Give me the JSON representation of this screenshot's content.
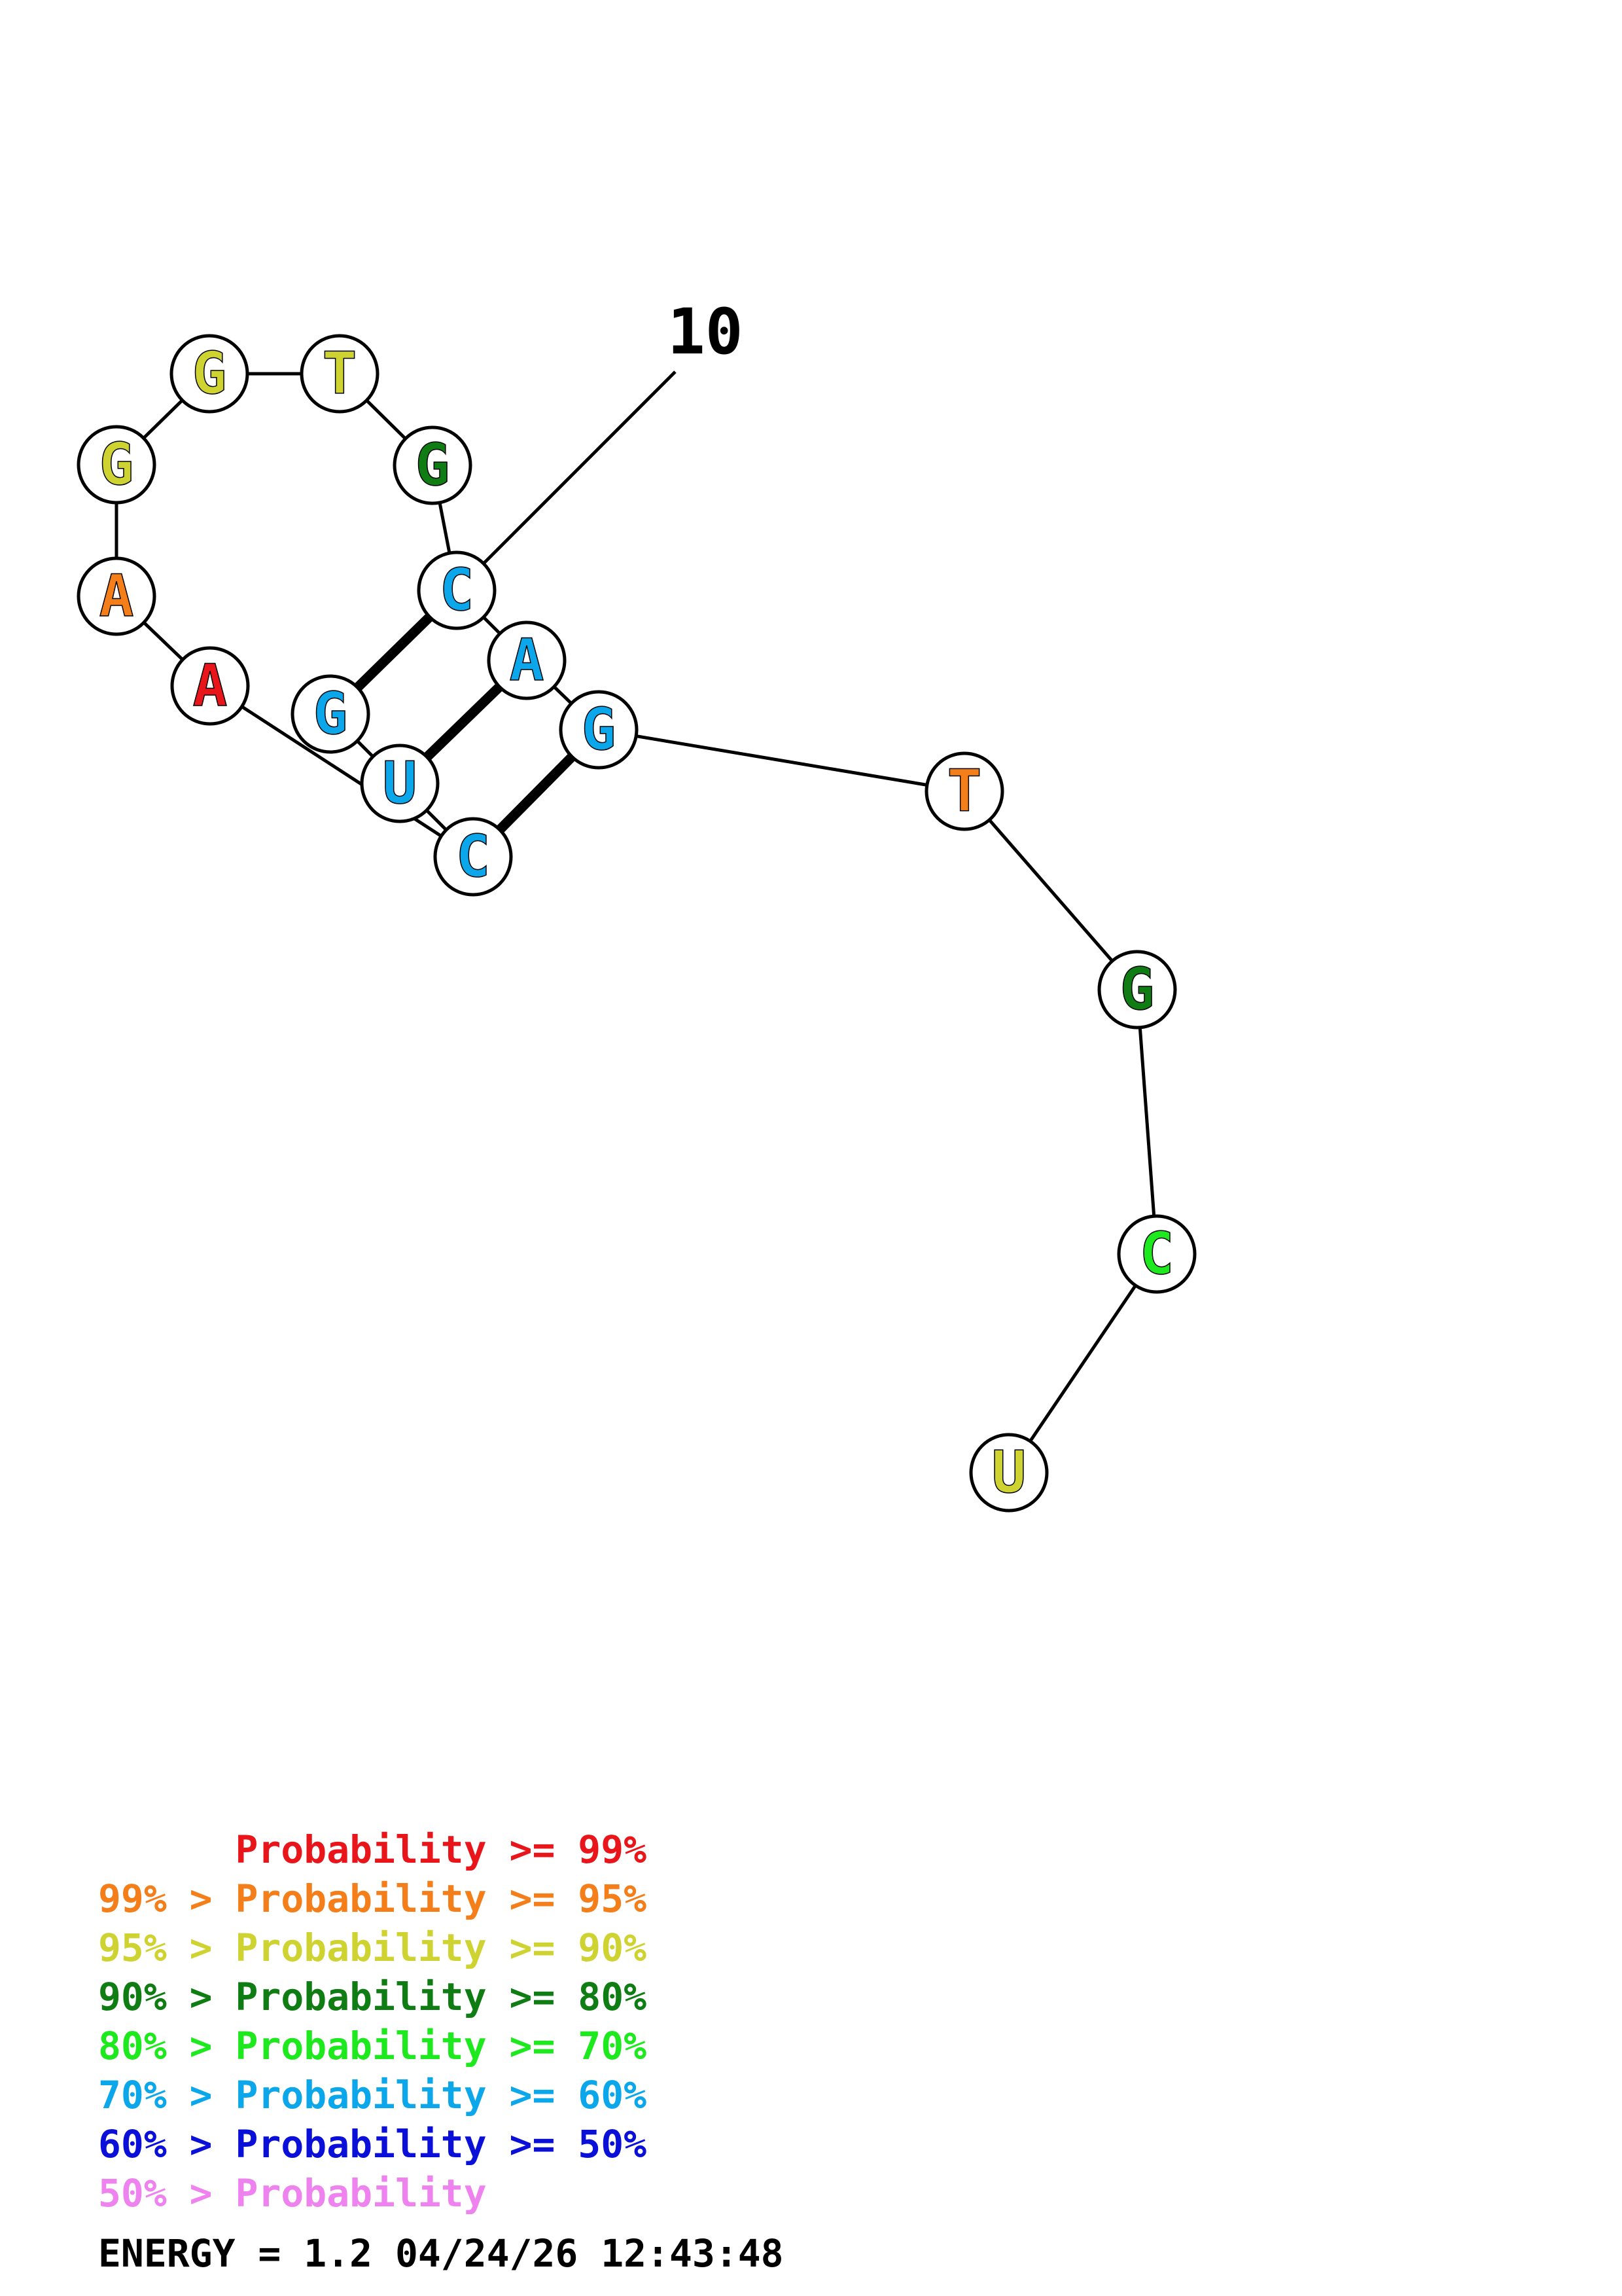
{
  "diagram": {
    "position_label": "10",
    "nucleotides": [
      {
        "index": 1,
        "base": "G",
        "prob_class": 5
      },
      {
        "index": 2,
        "base": "U",
        "prob_class": 5
      },
      {
        "index": 3,
        "base": "C",
        "prob_class": 5
      },
      {
        "index": 4,
        "base": "A",
        "prob_class": 0
      },
      {
        "index": 5,
        "base": "A",
        "prob_class": 1
      },
      {
        "index": 6,
        "base": "G",
        "prob_class": 2
      },
      {
        "index": 7,
        "base": "G",
        "prob_class": 2
      },
      {
        "index": 8,
        "base": "T",
        "prob_class": 2
      },
      {
        "index": 9,
        "base": "G",
        "prob_class": 3
      },
      {
        "index": 10,
        "base": "C",
        "prob_class": 5
      },
      {
        "index": 11,
        "base": "A",
        "prob_class": 5
      },
      {
        "index": 12,
        "base": "G",
        "prob_class": 5
      },
      {
        "index": 13,
        "base": "T",
        "prob_class": 1
      },
      {
        "index": 14,
        "base": "G",
        "prob_class": 3
      },
      {
        "index": 15,
        "base": "C",
        "prob_class": 4
      },
      {
        "index": 16,
        "base": "U",
        "prob_class": 2
      }
    ],
    "base_pairs": [
      [
        1,
        10
      ],
      [
        2,
        11
      ],
      [
        3,
        12
      ]
    ]
  },
  "legend": {
    "classes": [
      {
        "text": "      Probability >= 99%",
        "color": "#e8151b"
      },
      {
        "text": "99% > Probability >= 95%",
        "color": "#f47e19"
      },
      {
        "text": "95% > Probability >= 90%",
        "color": "#cfd331"
      },
      {
        "text": "90% > Probability >= 80%",
        "color": "#0f7d13"
      },
      {
        "text": "80% > Probability >= 70%",
        "color": "#1ee81e"
      },
      {
        "text": "70% > Probability >= 60%",
        "color": "#0ca6ea"
      },
      {
        "text": "60% > Probability >= 50%",
        "color": "#0b10d8"
      },
      {
        "text": "50% > Probability",
        "color": "#ee82ee"
      }
    ],
    "energy_line": "ENERGY = 1.2  04/24/26 12:43:48"
  }
}
